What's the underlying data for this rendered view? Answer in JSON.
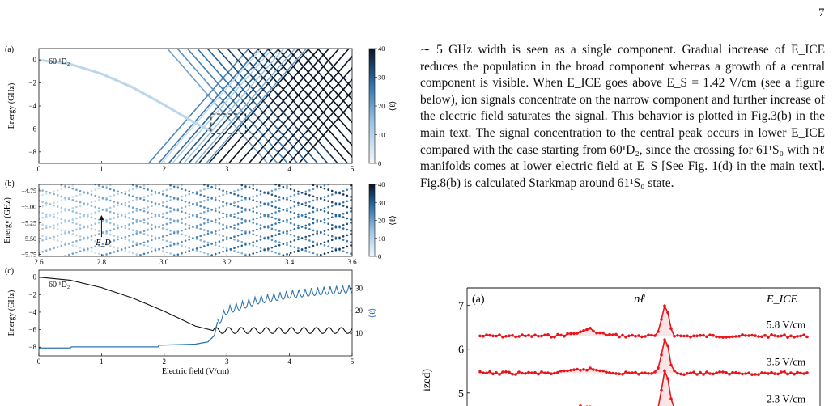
{
  "page_number": "7",
  "body_text": "∼ 5 GHz width is seen as a single component. Gradual increase of E_ICE reduces the population in the broad component whereas a growth of a central component is visible. When E_ICE goes above E_S = 1.42 V/cm (see a figure below), ion signals concentrate on the narrow component and further increase of the electric field saturates the signal. This behavior is plotted in Fig.3(b) in the main text. The signal concentration to the central peak occurs in lower E_ICE compared with the case starting from 60¹D₂, since the crossing for 61¹S₀ with nℓ manifolds comes at lower electric field at E_S [See Fig. 1(d) in the main text]. Fig.8(b) is calculated Starkmap around 61¹S₀ state.",
  "colors": {
    "curve_dark": "#0d2440",
    "curve_mid": "#2f76ad",
    "curve_light": "#bcd6ea",
    "signal_red": "#e8141c",
    "ell_blue": "#2b5cc0"
  },
  "chart_data": [
    {
      "panel": "(a)",
      "type": "line",
      "state_label": "60 ¹D₂",
      "xlim": [
        0,
        5
      ],
      "ylim": [
        -9,
        1
      ],
      "x_ticks": [
        "0",
        "1",
        "2",
        "3",
        "4",
        "5"
      ],
      "y_ticks": [
        "0",
        "−2",
        "−4",
        "−6",
        "−8"
      ],
      "ylabel": "Energy (GHz)",
      "colorbar_label": "⟨ℓ⟩",
      "colorbar_ticks": [
        "0",
        "10",
        "20",
        "30",
        "40"
      ],
      "colorbar_range": [
        0,
        40
      ],
      "inset_box": {
        "x": [
          2.75,
          3.3
        ],
        "y": [
          -6.4,
          -4.7
        ]
      },
      "state_curve": {
        "x": [
          0,
          0.5,
          1,
          1.5,
          2,
          2.5,
          2.75
        ],
        "y": [
          0,
          -0.35,
          -1.2,
          -2.4,
          -3.9,
          -5.5,
          -6.2
        ]
      },
      "manifold_fans": {
        "down_start_energy": -9,
        "up_start_energy": -9,
        "spacing_ghz": 0.8
      }
    },
    {
      "panel": "(b)",
      "type": "scatter",
      "xlim": [
        2.6,
        3.6
      ],
      "ylim": [
        -5.78,
        -4.65
      ],
      "x_ticks": [
        "2.6",
        "2.8",
        "3.0",
        "3.2",
        "3.4",
        "3.6"
      ],
      "y_ticks": [
        "−4.75",
        "−5.00",
        "−5.25",
        "−5.50",
        "−5.75"
      ],
      "ylabel": "Energy (GHz)",
      "colorbar_label": "⟨ℓ⟩",
      "colorbar_ticks": [
        "0",
        "10",
        "20",
        "30",
        "40"
      ],
      "annotation": "E_D",
      "annotation_x": 2.8
    },
    {
      "panel": "(c)",
      "type": "line",
      "state_label": "60 ¹D₂",
      "xlabel": "Electric field (V/cm)",
      "ylabel": "Energy (GHz)",
      "right_ylabel": "⟨ℓ⟩",
      "xlim": [
        0,
        5
      ],
      "ylim": [
        -9,
        0.8
      ],
      "x_ticks": [
        "0",
        "1",
        "2",
        "3",
        "4",
        "5"
      ],
      "y_ticks": [
        "0",
        "−2",
        "−4",
        "−6",
        "−8"
      ],
      "right_y_ticks": [
        "10",
        "20",
        "30"
      ],
      "right_ylim": [
        0,
        38
      ],
      "energy_series": {
        "x": [
          0,
          0.5,
          1,
          1.5,
          2,
          2.5,
          2.78
        ],
        "y": [
          0,
          -0.35,
          -1.2,
          -2.4,
          -3.9,
          -5.6,
          -6.1
        ]
      },
      "energy_after": {
        "level": -6.1,
        "amplitude": 0.35,
        "period": 0.2
      },
      "ell_series": {
        "x": [
          0,
          0.5,
          0.52,
          1.9,
          1.92,
          2.5,
          2.7,
          2.8,
          2.85,
          3.0,
          3.5,
          4.0,
          4.5,
          5.0
        ],
        "y": [
          3.5,
          3.5,
          4.0,
          4.0,
          4.7,
          5.2,
          6.2,
          9.0,
          15.0,
          20.5,
          25.0,
          27.5,
          29.0,
          30.0
        ]
      }
    },
    {
      "panel": "(a)",
      "type": "line",
      "label_top": "nℓ",
      "ylabel_fragment": "ized)",
      "legend_title": "E_ICE",
      "ylim_visible": [
        4.7,
        7.4
      ],
      "y_ticks": [
        "7",
        "6",
        "5"
      ],
      "series": [
        {
          "name": "5.8 V/cm",
          "offset": 6.3
        },
        {
          "name": "3.5 V/cm",
          "offset": 5.45
        },
        {
          "name": "2.3 V/cm",
          "offset": 4.6
        }
      ]
    }
  ]
}
